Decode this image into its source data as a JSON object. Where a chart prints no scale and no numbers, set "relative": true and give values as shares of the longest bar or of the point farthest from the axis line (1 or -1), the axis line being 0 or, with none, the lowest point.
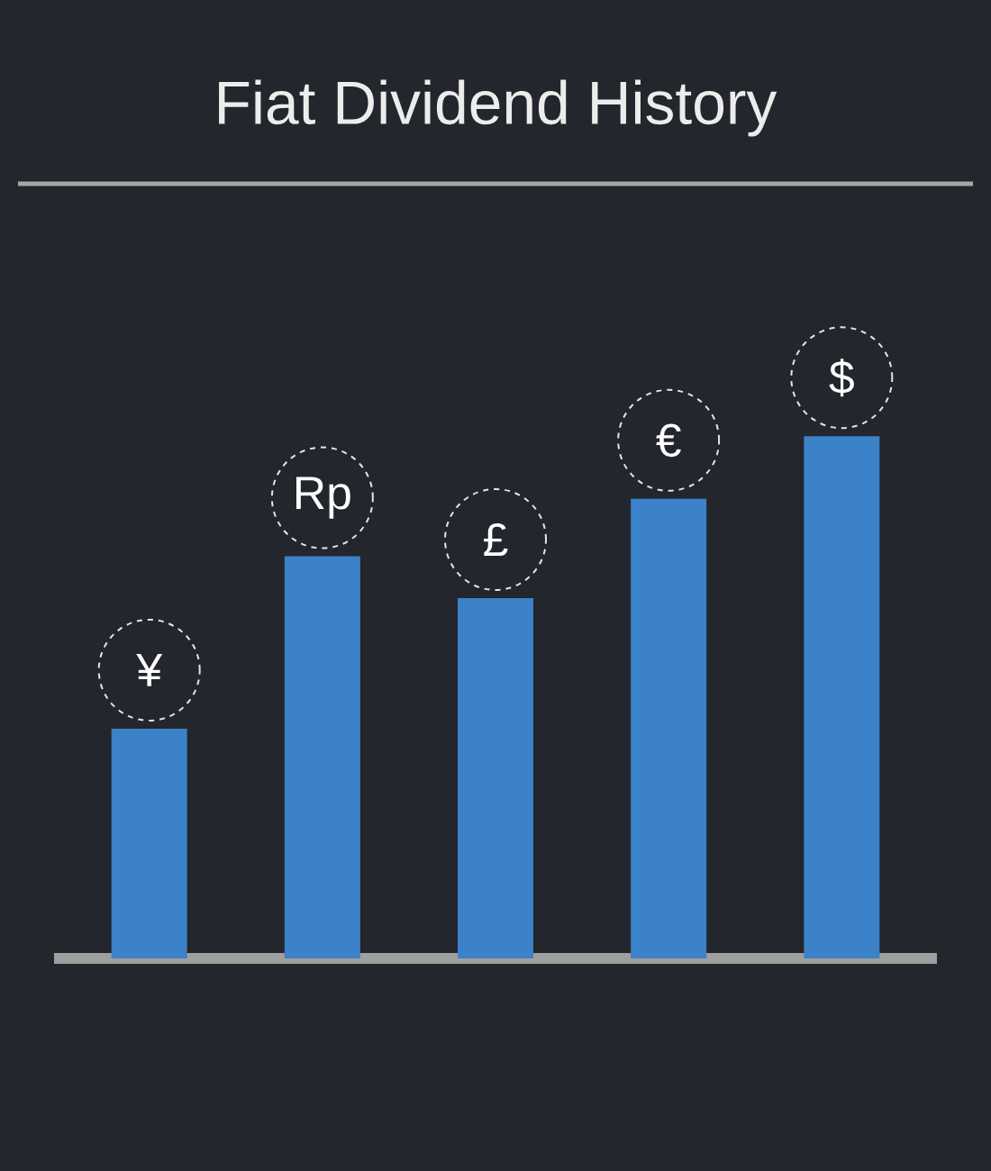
{
  "chart_data": {
    "type": "bar",
    "title": "Fiat Dividend History",
    "categories": [
      "¥",
      "Rp",
      "£",
      "€",
      "$"
    ],
    "values": [
      0.44,
      0.77,
      0.69,
      0.88,
      1
    ],
    "color": "#3b82c8",
    "relative": true
  }
}
